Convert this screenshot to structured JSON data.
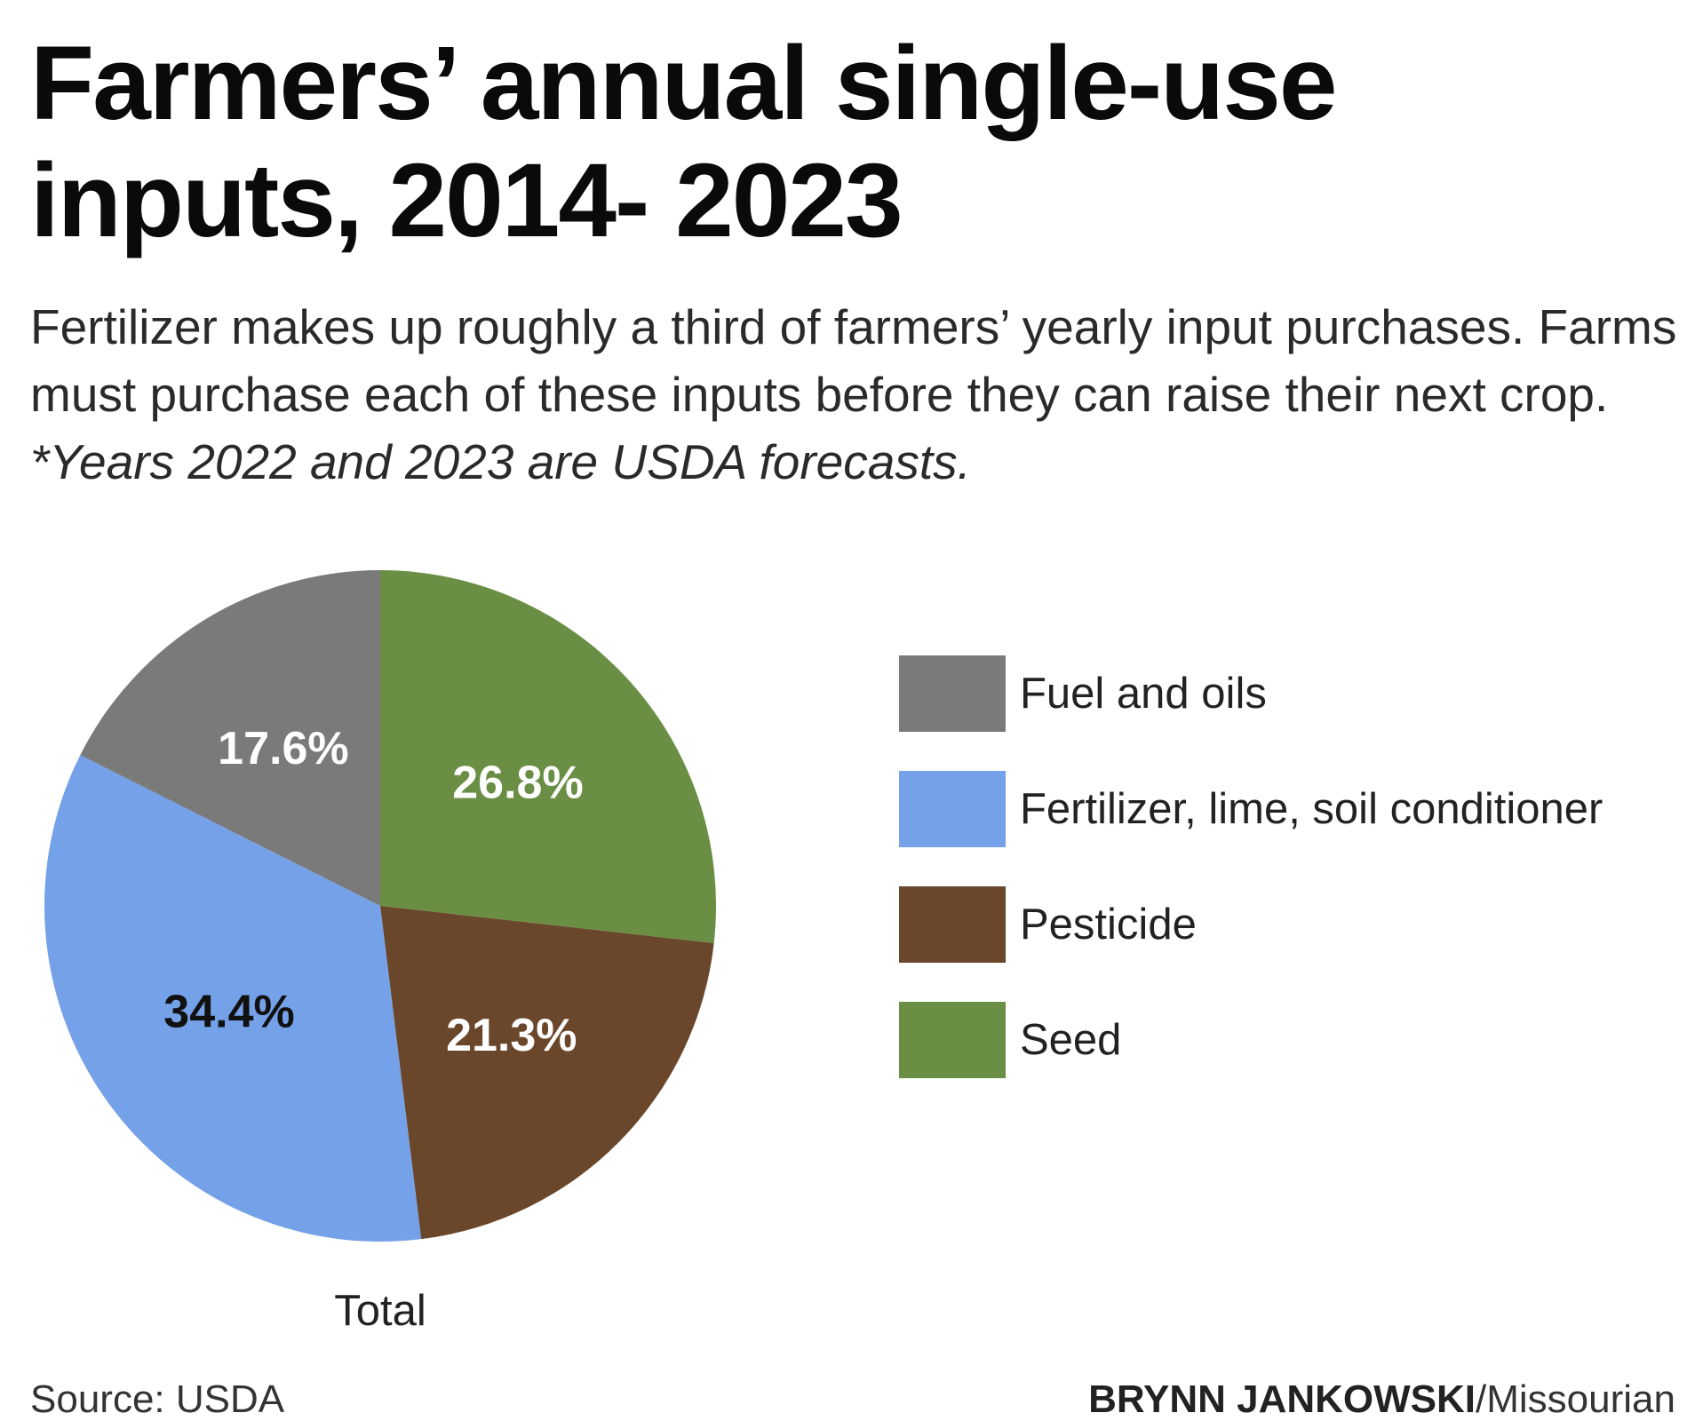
{
  "header": {
    "title": "Farmers’ annual single-use inputs, 2014- 2023",
    "subtitle": "Fertilizer makes up roughly a third of farmers’ yearly input purchases. Farms must purchase each of these inputs before they can raise their next crop.",
    "note": "*Years 2022 and 2023 are USDA forecasts."
  },
  "chart_data": {
    "type": "pie",
    "caption": "Total",
    "slices": [
      {
        "name": "Seed",
        "value": 26.8,
        "label": "26.8%",
        "color": "#6B8E45",
        "label_color": "#ffffff"
      },
      {
        "name": "Pesticide",
        "value": 21.3,
        "label": "21.3%",
        "color": "#6A462A",
        "label_color": "#ffffff"
      },
      {
        "name": "Fertilizer, lime, soil conditioner",
        "value": 34.4,
        "label": "34.4%",
        "color": "#75A1E8",
        "label_color": "#111111"
      },
      {
        "name": "Fuel and oils",
        "value": 17.6,
        "label": "17.6%",
        "color": "#7A7A7A",
        "label_color": "#ffffff"
      }
    ],
    "legend_order": [
      "Fuel and oils",
      "Fertilizer, lime, soil conditioner",
      "Pesticide",
      "Seed"
    ],
    "legend_placement": "right"
  },
  "footer": {
    "source": "Source: USDA",
    "author": "BRYNN JANKOWSKI",
    "outlet": "/Missourian"
  }
}
